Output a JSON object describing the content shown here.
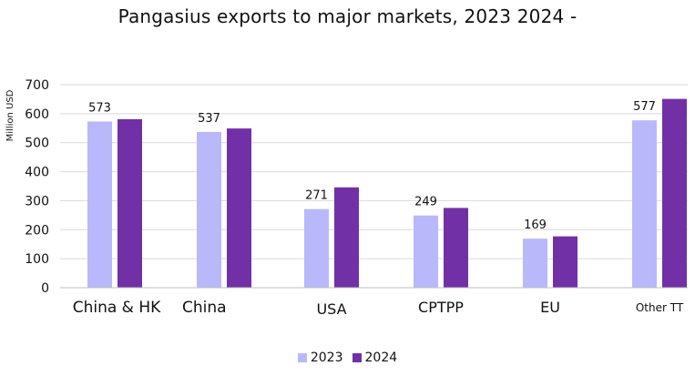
{
  "chart_data": {
    "type": "bar",
    "title": "Pangasius exports to major markets, 2023 2024 -",
    "ylabel": "Million USD",
    "xlabel": "",
    "categories": [
      "China & HK",
      "China",
      "USA",
      "CPTPP",
      "EU",
      "Other TT"
    ],
    "series": [
      {
        "name": "2023",
        "color": "#b8b8fb",
        "values": [
          573,
          537,
          271,
          249,
          169,
          577
        ],
        "labels": [
          "573",
          "537",
          "271",
          "249",
          "169",
          "577"
        ]
      },
      {
        "name": "2024",
        "color": "#7230a6",
        "values": [
          581,
          549,
          346,
          275,
          177,
          651
        ],
        "labels": [
          "",
          "",
          "",
          "",
          "",
          ""
        ]
      }
    ],
    "ylim": [
      0,
      700
    ],
    "yticks": [
      0,
      100,
      200,
      300,
      400,
      500,
      600,
      700
    ],
    "grid": true,
    "legend": "bottom"
  }
}
